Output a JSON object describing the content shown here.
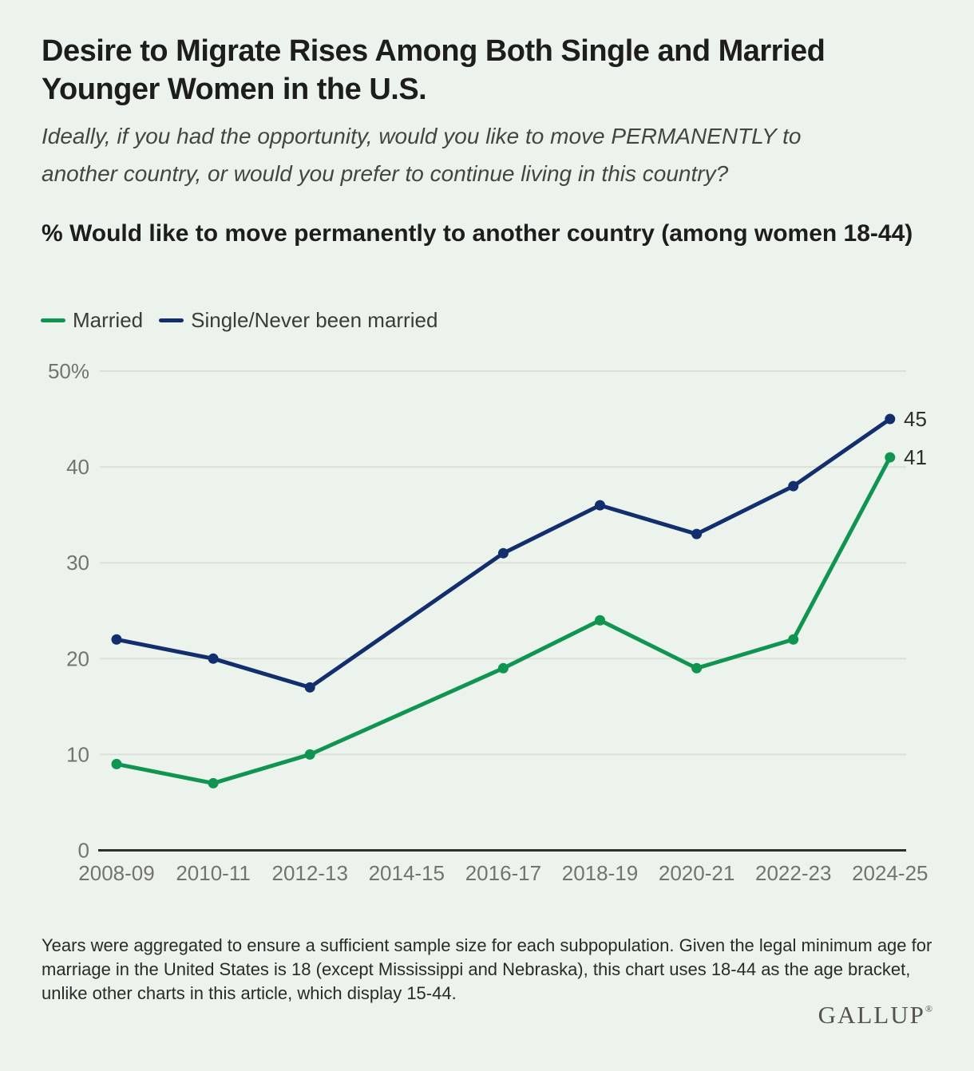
{
  "header": {
    "title": "Desire to Migrate Rises Among Both Single and Married Younger Women in the U.S.",
    "subtitle": "Ideally, if you had the opportunity, would you like to move PERMANENTLY to another country, or would you prefer to continue living in this country?",
    "question_label": "% Would like to move permanently to another country (among women 18-44)"
  },
  "chart_data": {
    "type": "line",
    "categories": [
      "2008-09",
      "2010-11",
      "2012-13",
      "2014-15",
      "2016-17",
      "2018-19",
      "2020-21",
      "2022-23",
      "2024-25"
    ],
    "series": [
      {
        "name": "Married",
        "color": "#109551",
        "values": [
          9,
          7,
          10,
          null,
          19,
          24,
          19,
          22,
          41
        ],
        "end_label": "41"
      },
      {
        "name": "Single/Never been married",
        "color": "#132E6D",
        "values": [
          22,
          20,
          17,
          null,
          31,
          36,
          33,
          38,
          45
        ],
        "end_label": "45"
      }
    ],
    "y_ticks": [
      {
        "value": 50,
        "label": "50%"
      },
      {
        "value": 40,
        "label": "40"
      },
      {
        "value": 30,
        "label": "30"
      },
      {
        "value": 20,
        "label": "20"
      },
      {
        "value": 10,
        "label": "10"
      },
      {
        "value": 0,
        "label": "0"
      }
    ],
    "ylim": [
      0,
      50
    ],
    "grid": true,
    "legend_position": "top-left",
    "note": "no data point plotted for 2014-15"
  },
  "footnote": "Years were aggregated to ensure a sufficient sample size for each subpopulation. Given the legal minimum age for marriage in the United States is 18 (except Mississippi and Nebraska), this chart uses 18-44 as the age bracket, unlike other charts in this article, which display 15-44.",
  "brand": {
    "logo_text": "GALLUP",
    "registered_mark": "®"
  },
  "colors": {
    "background": "#ECF3ED",
    "gridline": "#DADFD9",
    "axis": "#2F2F2C",
    "tick_text": "#73736F",
    "married_green": "#109551",
    "single_navy": "#132E6D"
  }
}
